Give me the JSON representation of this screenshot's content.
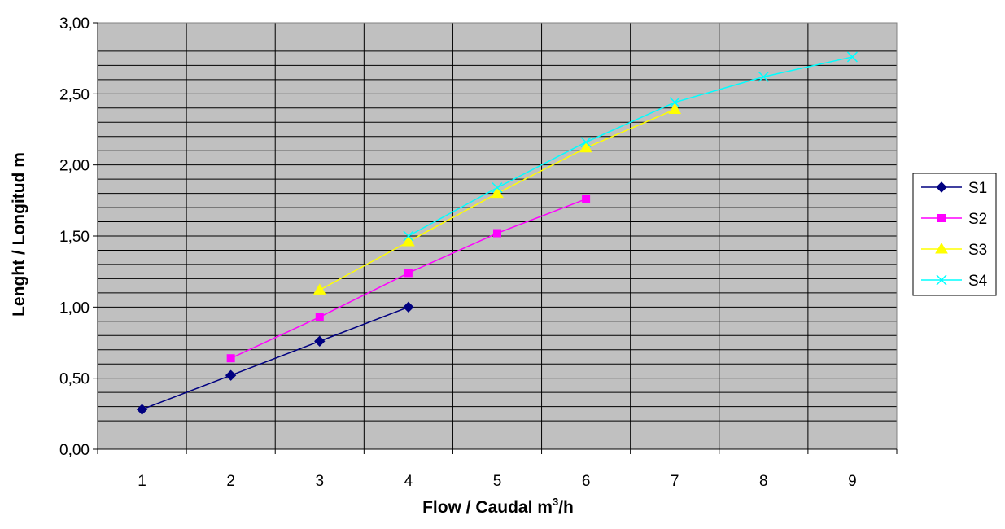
{
  "chart_data": {
    "type": "line",
    "title": "",
    "xlabel_main": "Flow / Caudal m",
    "xlabel_sup": "3",
    "xlabel_tail": "/h",
    "ylabel": "Lenght / Longitud m",
    "categories": [
      "1",
      "2",
      "3",
      "4",
      "5",
      "6",
      "7",
      "8",
      "9"
    ],
    "ylim": [
      0,
      3
    ],
    "yticks": [
      "0,00",
      "0,50",
      "1,00",
      "1,50",
      "2,00",
      "2,50",
      "3,00"
    ],
    "grid": true,
    "plot_background": "#c0c0c0",
    "legend_position": "right",
    "series": [
      {
        "name": "S1",
        "color": "#000080",
        "marker": "diamond",
        "x": [
          1,
          2,
          3,
          4
        ],
        "values": [
          0.28,
          0.52,
          0.76,
          1.0
        ]
      },
      {
        "name": "S2",
        "color": "#ff00ff",
        "marker": "square",
        "x": [
          2,
          3,
          4,
          5,
          6
        ],
        "values": [
          0.64,
          0.93,
          1.24,
          1.52,
          1.76
        ]
      },
      {
        "name": "S3",
        "color": "#ffff00",
        "marker": "triangle",
        "x": [
          3,
          4,
          5,
          6,
          7
        ],
        "values": [
          1.12,
          1.46,
          1.8,
          2.12,
          2.39
        ]
      },
      {
        "name": "S4",
        "color": "#00ffff",
        "marker": "x",
        "x": [
          4,
          5,
          6,
          7,
          8,
          9
        ],
        "values": [
          1.5,
          1.84,
          2.16,
          2.44,
          2.62,
          2.76
        ]
      }
    ]
  }
}
